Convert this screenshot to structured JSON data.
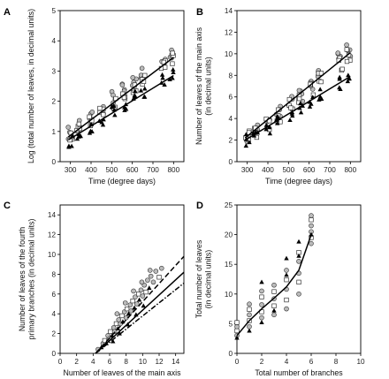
{
  "chart_data": [
    {
      "panel": "A",
      "type": "scatter",
      "xlabel": "Time (degree days)",
      "ylabel": [
        "Log (total number of leaves, in decimal units)"
      ],
      "xlim": [
        250,
        850
      ],
      "ylim": [
        0,
        5
      ],
      "xticks": [
        300,
        400,
        500,
        600,
        700,
        800
      ],
      "yticks": [
        0,
        1,
        2,
        3,
        4,
        5
      ],
      "x_groups": [
        300,
        340,
        400,
        450,
        510,
        560,
        610,
        650,
        750,
        790
      ],
      "series": [
        {
          "marker": "circle",
          "values": [
            0.95,
            1.15,
            1.45,
            1.75,
            2.1,
            2.35,
            2.65,
            2.95,
            3.4,
            3.65
          ]
        },
        {
          "marker": "square",
          "values": [
            0.85,
            1.05,
            1.35,
            1.6,
            1.95,
            2.2,
            2.5,
            2.75,
            3.15,
            3.4
          ]
        },
        {
          "marker": "triangle",
          "values": [
            0.7,
            0.9,
            1.15,
            1.4,
            1.7,
            1.9,
            2.15,
            2.35,
            2.65,
            2.85
          ]
        }
      ],
      "fits": [
        {
          "style": "solid",
          "x": [
            290,
            800
          ],
          "y": [
            0.82,
            3.45
          ]
        },
        {
          "style": "solid",
          "x": [
            290,
            800
          ],
          "y": [
            0.72,
            2.85
          ]
        }
      ]
    },
    {
      "panel": "B",
      "type": "scatter",
      "xlabel": "Time (degree days)",
      "ylabel": [
        "Number of leaves of the main axis",
        "(in decimal units)"
      ],
      "xlim": [
        250,
        850
      ],
      "ylim": [
        0,
        14
      ],
      "xticks": [
        300,
        400,
        500,
        600,
        700,
        800
      ],
      "yticks": [
        0,
        2,
        4,
        6,
        8,
        10,
        12,
        14
      ],
      "x_groups": [
        300,
        340,
        400,
        450,
        510,
        560,
        610,
        650,
        750,
        790
      ],
      "series": [
        {
          "marker": "circle",
          "values": [
            2.4,
            2.9,
            3.7,
            4.5,
            5.5,
            6.2,
            7.1,
            7.9,
            9.5,
            10.3
          ]
        },
        {
          "marker": "square",
          "values": [
            2.3,
            2.7,
            3.5,
            4.3,
            5.2,
            5.9,
            6.8,
            7.6,
            9.1,
            9.8
          ]
        },
        {
          "marker": "triangle",
          "values": [
            2.0,
            2.4,
            3.0,
            3.6,
            4.3,
            4.8,
            5.5,
            6.1,
            7.2,
            7.7
          ]
        }
      ],
      "fits": [
        {
          "style": "solid",
          "x": [
            290,
            800
          ],
          "y": [
            2.2,
            10.1
          ]
        },
        {
          "style": "solid",
          "x": [
            290,
            800
          ],
          "y": [
            2.0,
            7.9
          ]
        }
      ]
    },
    {
      "panel": "C",
      "type": "scatter",
      "xlabel": [
        "Number of leaves of the main axis",
        "(in decimal units)"
      ],
      "ylabel": [
        "Number of leaves of the fourth",
        "primary branches (in decimal units)"
      ],
      "xlim": [
        0,
        15
      ],
      "ylim": [
        0,
        15
      ],
      "xticks": [
        0,
        2,
        4,
        6,
        8,
        10,
        12,
        14
      ],
      "yticks": [
        0,
        2,
        4,
        6,
        8,
        10,
        12,
        14
      ],
      "points": [
        [
          4.6,
          0.4,
          "circle"
        ],
        [
          5.0,
          0.6,
          "triangle"
        ],
        [
          5.2,
          1.0,
          "circle"
        ],
        [
          5.4,
          1.3,
          "square"
        ],
        [
          5.6,
          1.0,
          "triangle"
        ],
        [
          5.8,
          1.8,
          "circle"
        ],
        [
          6.0,
          1.5,
          "circle"
        ],
        [
          6.1,
          2.2,
          "square"
        ],
        [
          6.3,
          1.8,
          "triangle"
        ],
        [
          6.5,
          2.6,
          "circle"
        ],
        [
          6.6,
          2.2,
          "circle"
        ],
        [
          6.8,
          3.0,
          "square"
        ],
        [
          7.0,
          2.5,
          "triangle"
        ],
        [
          7.1,
          3.4,
          "circle"
        ],
        [
          7.3,
          3.0,
          "circle"
        ],
        [
          7.5,
          3.8,
          "square"
        ],
        [
          7.6,
          3.2,
          "triangle"
        ],
        [
          7.8,
          4.2,
          "circle"
        ],
        [
          8.0,
          3.6,
          "circle"
        ],
        [
          8.1,
          4.5,
          "square"
        ],
        [
          8.3,
          4.0,
          "triangle"
        ],
        [
          8.5,
          4.9,
          "circle"
        ],
        [
          8.6,
          4.3,
          "circle"
        ],
        [
          8.8,
          5.3,
          "square"
        ],
        [
          9.0,
          4.6,
          "triangle"
        ],
        [
          9.1,
          5.7,
          "circle"
        ],
        [
          9.3,
          5.0,
          "circle"
        ],
        [
          9.5,
          6.0,
          "square"
        ],
        [
          9.6,
          5.4,
          "triangle"
        ],
        [
          9.8,
          6.4,
          "circle"
        ],
        [
          10.0,
          5.8,
          "circle"
        ],
        [
          10.2,
          6.9,
          "circle"
        ],
        [
          10.4,
          6.2,
          "square"
        ],
        [
          10.6,
          7.4,
          "circle"
        ],
        [
          10.8,
          6.6,
          "triangle"
        ],
        [
          11.0,
          7.8,
          "circle"
        ],
        [
          11.3,
          7.2,
          "circle"
        ],
        [
          11.6,
          8.3,
          "circle"
        ],
        [
          12.0,
          7.7,
          "square"
        ],
        [
          12.3,
          8.6,
          "circle"
        ],
        [
          6.4,
          1.2,
          "triangle"
        ],
        [
          7.2,
          2.0,
          "triangle"
        ],
        [
          8.2,
          2.9,
          "triangle"
        ],
        [
          9.2,
          3.9,
          "triangle"
        ],
        [
          10.1,
          4.8,
          "triangle"
        ],
        [
          6.9,
          4.0,
          "circle"
        ],
        [
          7.9,
          5.1,
          "circle"
        ],
        [
          8.9,
          6.3,
          "circle"
        ],
        [
          9.9,
          7.2,
          "circle"
        ],
        [
          10.9,
          8.4,
          "circle"
        ]
      ],
      "fits": [
        {
          "style": "dashed",
          "x": [
            4.3,
            15
          ],
          "y": [
            0.0,
            9.8
          ]
        },
        {
          "style": "solid",
          "x": [
            4.3,
            15
          ],
          "y": [
            0.0,
            8.2
          ]
        },
        {
          "style": "dashdot",
          "x": [
            4.3,
            15
          ],
          "y": [
            0.0,
            7.1
          ]
        }
      ]
    },
    {
      "panel": "D",
      "type": "scatter",
      "xlabel": "Total number of branches",
      "ylabel": [
        "Total number of leaves",
        "(in decimal units)"
      ],
      "xlim": [
        0,
        10
      ],
      "ylim": [
        0,
        25
      ],
      "xticks": [
        0,
        2,
        4,
        6,
        8,
        10
      ],
      "yticks": [
        0,
        5,
        10,
        15,
        20,
        25
      ],
      "points": [
        [
          0,
          3.0,
          "circle"
        ],
        [
          0,
          3.8,
          "square"
        ],
        [
          0,
          4.5,
          "circle"
        ],
        [
          0,
          2.6,
          "triangle"
        ],
        [
          0,
          5.2,
          "square"
        ],
        [
          1,
          4.5,
          "circle"
        ],
        [
          1,
          5.5,
          "square"
        ],
        [
          1,
          6.5,
          "circle"
        ],
        [
          1,
          7.4,
          "square"
        ],
        [
          1,
          3.8,
          "triangle"
        ],
        [
          1,
          8.3,
          "circle"
        ],
        [
          2,
          6.0,
          "circle"
        ],
        [
          2,
          7.0,
          "square"
        ],
        [
          2,
          8.2,
          "circle"
        ],
        [
          2,
          9.5,
          "square"
        ],
        [
          2,
          10.5,
          "circle"
        ],
        [
          2,
          12.0,
          "triangle"
        ],
        [
          2,
          5.2,
          "triangle"
        ],
        [
          3,
          6.5,
          "circle"
        ],
        [
          3,
          8.0,
          "square"
        ],
        [
          3,
          9.2,
          "circle"
        ],
        [
          3,
          10.4,
          "square"
        ],
        [
          3,
          11.5,
          "circle"
        ],
        [
          3,
          7.2,
          "triangle"
        ],
        [
          4,
          7.5,
          "circle"
        ],
        [
          4,
          9.0,
          "square"
        ],
        [
          4,
          10.8,
          "circle"
        ],
        [
          4,
          12.4,
          "square"
        ],
        [
          4,
          14.0,
          "circle"
        ],
        [
          4,
          16.0,
          "triangle"
        ],
        [
          4,
          13.2,
          "triangle"
        ],
        [
          5,
          10.0,
          "circle"
        ],
        [
          5,
          12.0,
          "square"
        ],
        [
          5,
          13.5,
          "circle"
        ],
        [
          5,
          15.5,
          "circle"
        ],
        [
          5,
          17.0,
          "square"
        ],
        [
          5,
          18.8,
          "triangle"
        ],
        [
          5,
          16.4,
          "triangle"
        ],
        [
          6,
          18.5,
          "circle"
        ],
        [
          6,
          19.5,
          "square"
        ],
        [
          6,
          20.5,
          "circle"
        ],
        [
          6,
          21.5,
          "circle"
        ],
        [
          6,
          22.5,
          "square"
        ],
        [
          6,
          23.2,
          "circle"
        ],
        [
          6,
          20.0,
          "triangle"
        ]
      ],
      "fits": [
        {
          "style": "solid",
          "curve": [
            [
              0,
              3.0
            ],
            [
              1,
              5.5
            ],
            [
              2,
              7.5
            ],
            [
              3,
              9.3
            ],
            [
              4,
              11.2
            ],
            [
              5,
              14.0
            ],
            [
              6,
              20.0
            ]
          ]
        }
      ]
    }
  ]
}
